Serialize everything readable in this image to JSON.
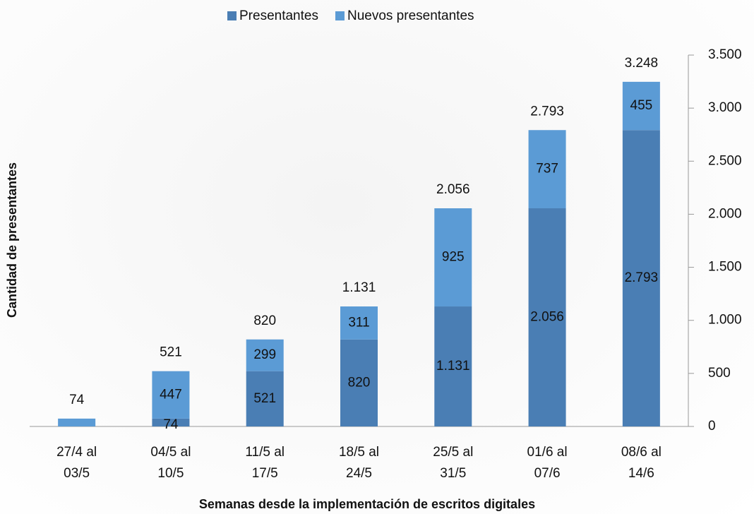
{
  "chart_data": {
    "type": "stacked_bar",
    "x_label": "Semanas desde la implementación de escritos digitales",
    "y_label": "Cantidad de presentantes",
    "categories": [
      "27/4 al 03/5",
      "04/5 al 10/5",
      "11/5 al 17/5",
      "18/5 al 24/5",
      "25/5 al 31/5",
      "01/6 al 07/6",
      "08/6 al 14/6"
    ],
    "series": [
      {
        "name": "Presentantes",
        "color": "#4a7eb4",
        "values": [
          0,
          74,
          521,
          820,
          1131,
          2056,
          2793
        ],
        "value_labels": [
          null,
          "74",
          "521",
          "820",
          "1.131",
          "2.056",
          "2.793"
        ]
      },
      {
        "name": "Nuevos presentantes",
        "color": "#5b9bd5",
        "values": [
          74,
          447,
          299,
          311,
          925,
          737,
          455
        ],
        "value_labels": [
          null,
          "447",
          "299",
          "311",
          "925",
          "737",
          "455"
        ]
      }
    ],
    "totals": {
      "values": [
        74,
        521,
        820,
        1131,
        2056,
        2793,
        3248
      ],
      "value_labels": [
        "74",
        "521",
        "820",
        "1.131",
        "2.056",
        "2.793",
        "3.248"
      ]
    },
    "ylim": [
      0,
      3500
    ],
    "yticks": [
      0,
      500,
      {
        "value": 1000,
        "label": "1.000"
      },
      {
        "value": 1500,
        "label": "1.500"
      },
      {
        "value": 2000,
        "label": "2.000"
      },
      {
        "value": 2500,
        "label": "2.500"
      },
      {
        "value": 3000,
        "label": "3.000"
      },
      {
        "value": 3500,
        "label": "3.500"
      }
    ],
    "y_axis_side": "right",
    "legend": "top"
  }
}
